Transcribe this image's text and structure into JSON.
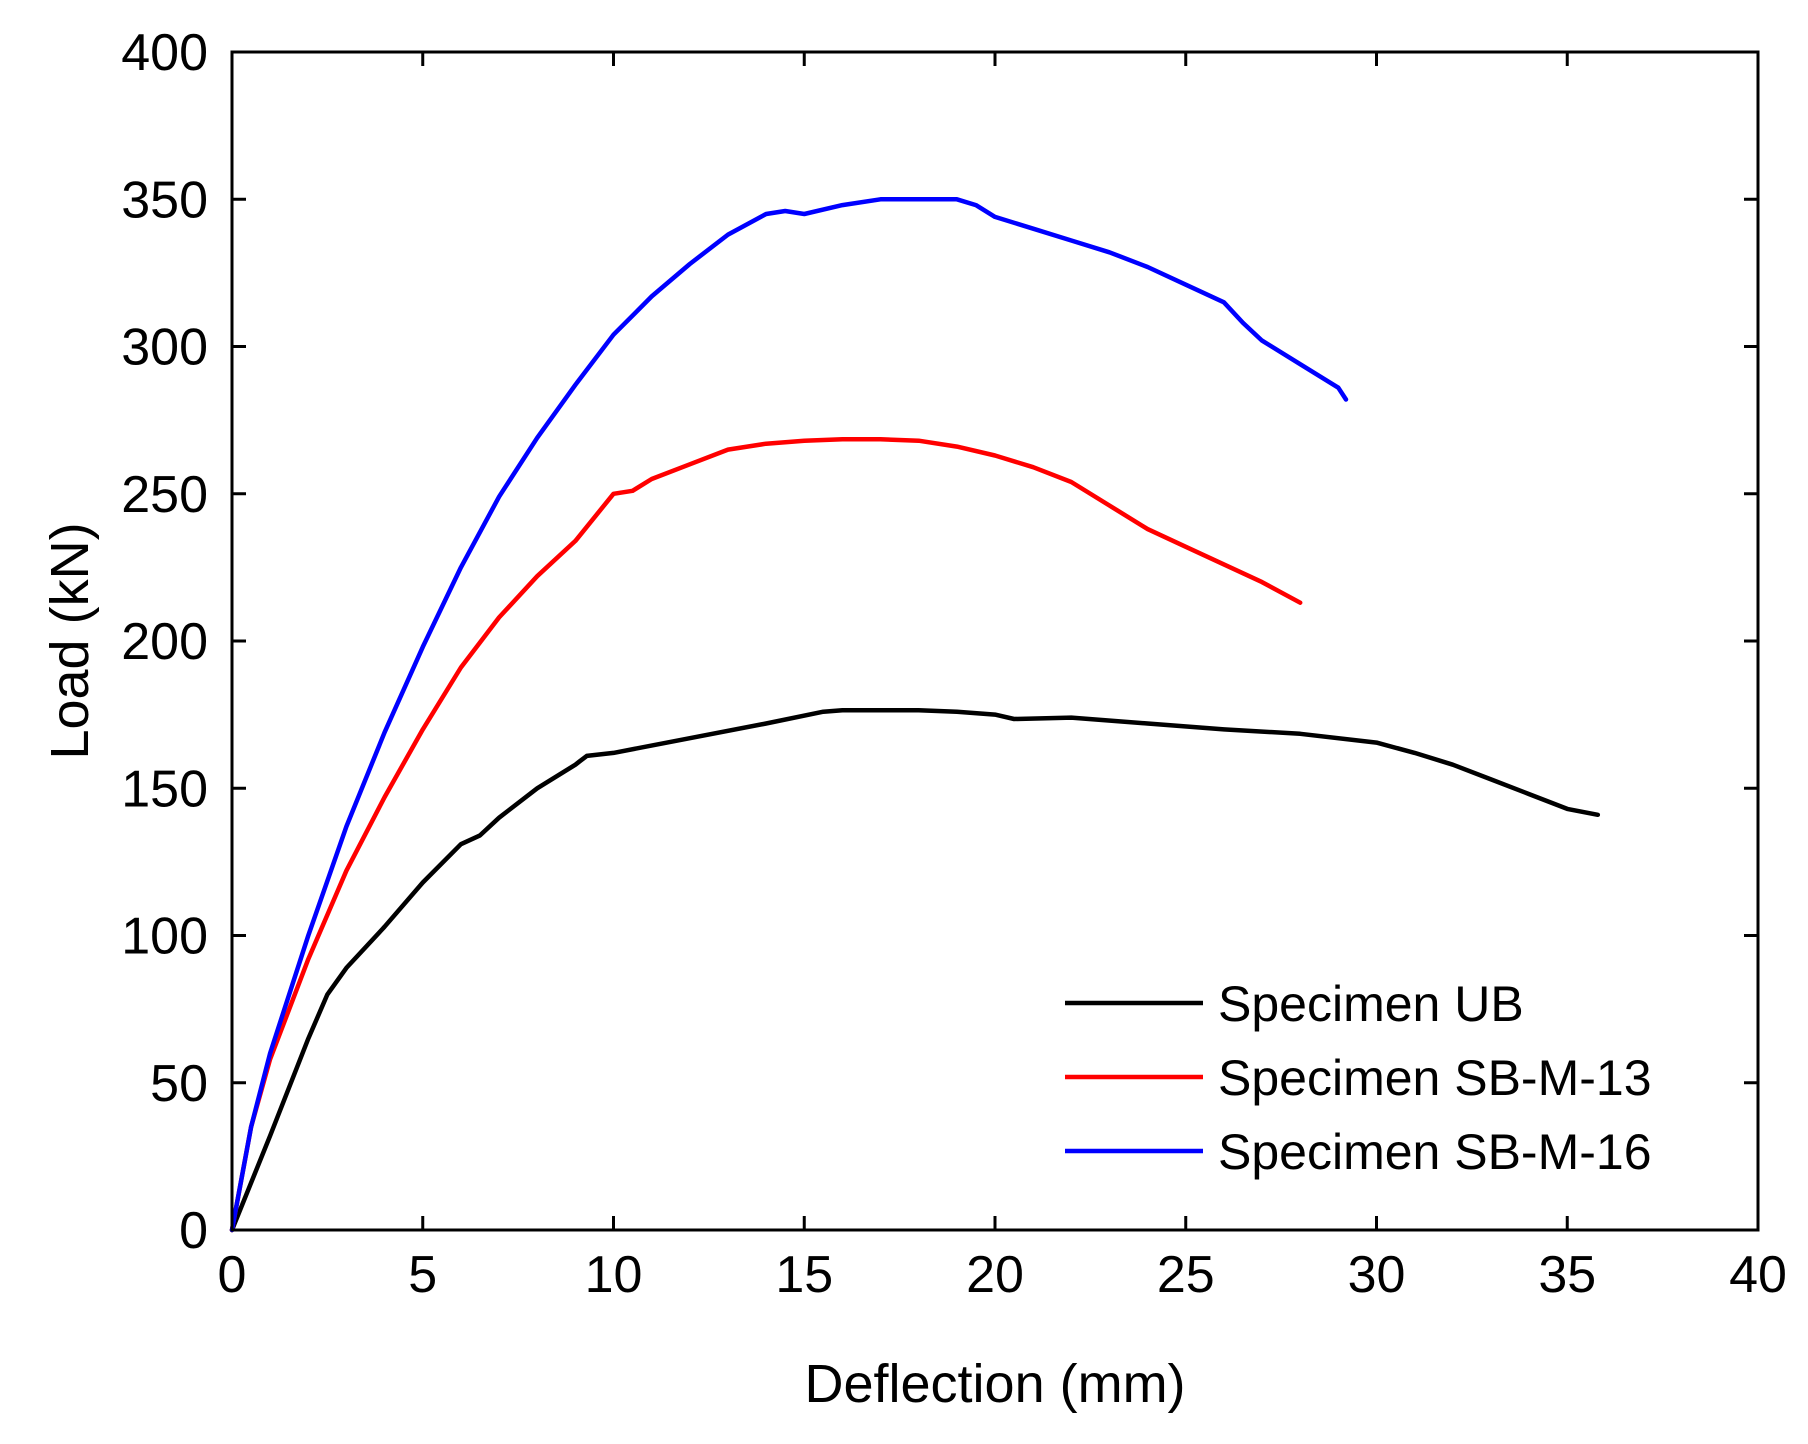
{
  "chart_data": {
    "type": "line",
    "title": "",
    "xlabel": "Deflection (mm)",
    "ylabel": "Load (kN)",
    "xlim": [
      0,
      40
    ],
    "ylim": [
      0,
      400
    ],
    "xticks": [
      "0",
      "5",
      "10",
      "15",
      "20",
      "25",
      "30",
      "35",
      "40"
    ],
    "yticks": [
      "0",
      "50",
      "100",
      "150",
      "200",
      "250",
      "300",
      "350",
      "400"
    ],
    "grid": false,
    "legend_position": "bottom-right",
    "series": [
      {
        "name": "Specimen UB",
        "color": "#000000",
        "x": [
          0,
          1,
          2,
          2.5,
          3,
          4,
          5,
          6,
          6.5,
          7,
          8,
          9,
          9.1,
          9.3,
          10,
          12,
          14,
          15.5,
          16,
          17,
          18,
          19,
          20,
          20.5,
          22,
          24,
          26,
          28,
          30,
          31,
          32,
          33,
          34,
          35,
          35.8
        ],
        "y": [
          0,
          32,
          65,
          80,
          89,
          103,
          118,
          131,
          134,
          140,
          150,
          158,
          159,
          161,
          162,
          167,
          172,
          176,
          176.5,
          176.5,
          176.5,
          176,
          175,
          173.5,
          174,
          172,
          170,
          168.5,
          165.5,
          162,
          158,
          153,
          148,
          143,
          141
        ]
      },
      {
        "name": "Specimen SB-M-13",
        "color": "#ff0000",
        "x": [
          0,
          0.5,
          1,
          2,
          3,
          4,
          5,
          6,
          7,
          8,
          9,
          10,
          10.5,
          11,
          12,
          13,
          14,
          15,
          16,
          17,
          18,
          19,
          20,
          21,
          22,
          23,
          24,
          25,
          26,
          27,
          28
        ],
        "y": [
          0,
          35,
          58,
          92,
          122,
          147,
          170,
          191,
          208,
          222,
          234,
          250,
          251,
          255,
          260,
          265,
          267,
          268,
          268.5,
          268.5,
          268,
          266,
          263,
          259,
          254,
          246,
          238,
          232,
          226,
          220,
          213
        ]
      },
      {
        "name": "Specimen SB-M-16",
        "color": "#0000ff",
        "x": [
          0,
          0.5,
          1,
          2,
          3,
          4,
          5,
          6,
          7,
          8,
          9,
          10,
          11,
          12,
          13,
          14,
          14.5,
          15,
          16,
          17,
          18,
          19,
          19.5,
          20,
          21,
          22,
          23,
          24,
          25,
          26,
          26.5,
          27,
          28,
          29,
          29.2
        ],
        "y": [
          0,
          35,
          60,
          100,
          137,
          169,
          198,
          225,
          249,
          269,
          287,
          304,
          317,
          328,
          338,
          345,
          346,
          345,
          348,
          350,
          350,
          350,
          348,
          344,
          340,
          336,
          332,
          327,
          321,
          315,
          308,
          302,
          294,
          286,
          282
        ]
      }
    ]
  }
}
